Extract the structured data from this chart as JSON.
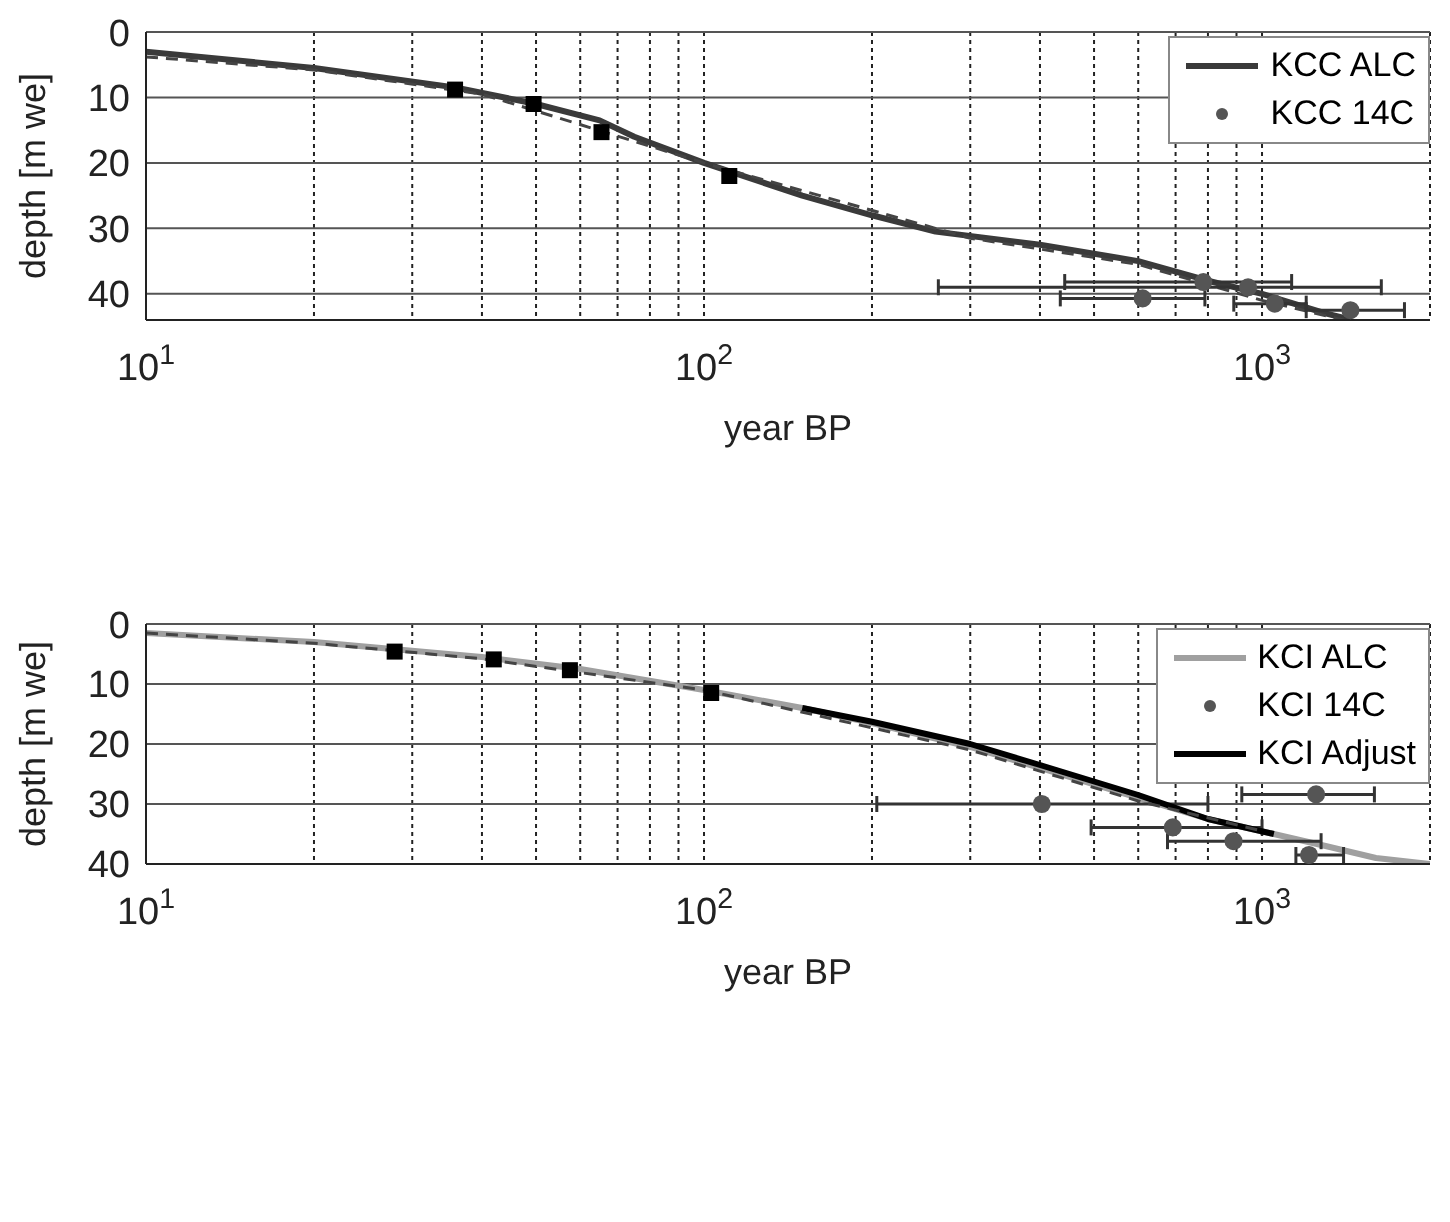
{
  "chart_data": [
    {
      "type": "line",
      "xlabel": "year BP",
      "ylabel": "depth [m we]",
      "log": "x",
      "grid": true,
      "legend": "top right",
      "xlim": [
        10,
        2000
      ],
      "ylim": [
        44,
        0
      ],
      "xticks": [
        {
          "value": 10,
          "label": "10$^{1}$"
        },
        {
          "value": 20,
          "label": null
        },
        {
          "value": 30,
          "label": null
        },
        {
          "value": 40,
          "label": null
        },
        {
          "value": 50,
          "label": null
        },
        {
          "value": 60,
          "label": null
        },
        {
          "value": 70,
          "label": null
        },
        {
          "value": 80,
          "label": null
        },
        {
          "value": 90,
          "label": null
        },
        {
          "value": 100,
          "label": "10$^{2}$"
        },
        {
          "value": 200,
          "label": null
        },
        {
          "value": 300,
          "label": null
        },
        {
          "value": 400,
          "label": null
        },
        {
          "value": 500,
          "label": null
        },
        {
          "value": 600,
          "label": null
        },
        {
          "value": 700,
          "label": null
        },
        {
          "value": 800,
          "label": null
        },
        {
          "value": 900,
          "label": null
        },
        {
          "value": 1000,
          "label": "10$^{3}$"
        }
      ],
      "yticks": [
        0,
        10,
        20,
        30,
        40
      ],
      "series": [
        {
          "name": "KCC ALC",
          "color": "#3a3a3a",
          "marker": "none",
          "line_style": "solid",
          "x": [
            10,
            20,
            36,
            50,
            65,
            75,
            100,
            150,
            200,
            260,
            400,
            600,
            800,
            1000,
            1300,
            1450
          ],
          "values": [
            3,
            5.5,
            8.5,
            11,
            13.5,
            16,
            20,
            25,
            28,
            30.5,
            32.5,
            35,
            38,
            40,
            43,
            44
          ]
        },
        {
          "color": "#444444",
          "marker": "none",
          "line_style": "dashed",
          "x": [
            10,
            20,
            40,
            100,
            300,
            600,
            1000,
            1400
          ],
          "values": [
            3.8,
            5.8,
            9.5,
            20,
            31.5,
            35.5,
            41,
            44
          ]
        },
        {
          "type": "scatter",
          "color": "#000000",
          "marker": "square",
          "x": [
            35.8,
            49.5,
            65.5,
            111
          ],
          "values": [
            8.8,
            11,
            15.3,
            22
          ]
        },
        {
          "name": "KCC 14C",
          "type": "scatter",
          "color": "#555555",
          "marker": "circle",
          "x": [
            611,
            785,
            944,
            1054,
            1440
          ],
          "values": [
            40.7,
            38.2,
            39,
            41.5,
            42.5
          ],
          "xerrors": [
            [
              435,
              790
            ],
            [
              443,
              1130
            ],
            [
              263,
              1636
            ],
            [
              890,
              1200
            ],
            [
              1200,
              1800
            ]
          ]
        }
      ]
    },
    {
      "type": "line",
      "xlabel": "year BP",
      "ylabel": "depth [m we]",
      "log": "x",
      "grid": true,
      "legend": "top right",
      "xlim": [
        10,
        2000
      ],
      "ylim": [
        40,
        0
      ],
      "xticks": [
        {
          "value": 10,
          "label": "10$^{1}$"
        },
        {
          "value": 20,
          "label": null
        },
        {
          "value": 30,
          "label": null
        },
        {
          "value": 40,
          "label": null
        },
        {
          "value": 50,
          "label": null
        },
        {
          "value": 60,
          "label": null
        },
        {
          "value": 70,
          "label": null
        },
        {
          "value": 80,
          "label": null
        },
        {
          "value": 90,
          "label": null
        },
        {
          "value": 100,
          "label": "10$^{2}$"
        },
        {
          "value": 200,
          "label": null
        },
        {
          "value": 300,
          "label": null
        },
        {
          "value": 400,
          "label": null
        },
        {
          "value": 500,
          "label": null
        },
        {
          "value": 600,
          "label": null
        },
        {
          "value": 700,
          "label": null
        },
        {
          "value": 800,
          "label": null
        },
        {
          "value": 900,
          "label": null
        },
        {
          "value": 1000,
          "label": "10$^{3}$"
        }
      ],
      "yticks": [
        0,
        10,
        20,
        30,
        40
      ],
      "series": [
        {
          "name": "KCI ALC",
          "color": "#a0a0a0",
          "marker": "none",
          "line_style": "solid",
          "x": [
            10,
            20,
            40,
            60,
            100,
            150,
            200,
            300,
            400,
            600,
            800,
            1050,
            1300,
            1600,
            2000
          ],
          "values": [
            1.5,
            3,
            5.5,
            7.5,
            11,
            14,
            16.5,
            20.5,
            24,
            29,
            32.5,
            35,
            37,
            39,
            40
          ]
        },
        {
          "name": "KCI 14C",
          "type": "scatter",
          "color": "#555555",
          "marker": "circle",
          "x": [
            403,
            1250,
            692,
            889,
            1214
          ],
          "values": [
            30,
            28.4,
            33.9,
            36.2,
            38.5
          ],
          "xerrors": [
            [
              204,
              800
            ],
            [
              920,
              1590
            ],
            [
              494,
              1000
            ],
            [
              677,
              1276
            ],
            [
              1150,
              1400
            ]
          ]
        },
        {
          "name": "KCI Adjust",
          "color": "#000000",
          "marker": "none",
          "line_style": "solid",
          "x": [
            150,
            200,
            300,
            400,
            600,
            800,
            1050
          ],
          "values": [
            14,
            16.3,
            20,
            23.5,
            28.5,
            32.5,
            35
          ]
        },
        {
          "color": "#444444",
          "marker": "none",
          "line_style": "dashed",
          "x": [
            10,
            20,
            40,
            100,
            300,
            600,
            1000
          ],
          "values": [
            1.5,
            3.2,
            5.8,
            11,
            21,
            29.5,
            34.5
          ]
        },
        {
          "type": "scatter",
          "color": "#000000",
          "marker": "square",
          "x": [
            27.9,
            42,
            57.5,
            103
          ],
          "values": [
            4.6,
            5.9,
            7.7,
            11.5
          ]
        }
      ]
    }
  ]
}
